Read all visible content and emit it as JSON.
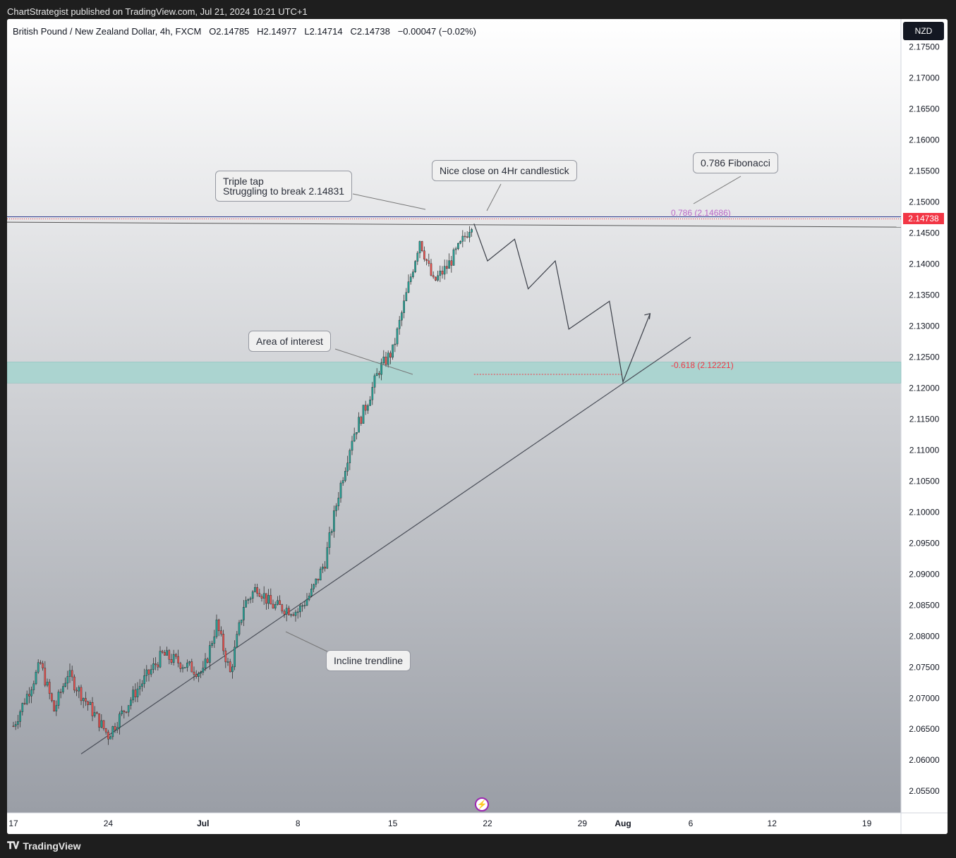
{
  "header": {
    "published": "ChartStrategist published on TradingView.com, Jul 21, 2024 10:21 UTC+1"
  },
  "legend": {
    "symbol": "British Pound / New Zealand Dollar, 4h, FXCM",
    "open": "O2.14785",
    "high": "H2.14977",
    "low": "L2.14714",
    "close": "C2.14738",
    "change": "−0.00047 (−0.02%)"
  },
  "currency_button": "NZD",
  "price_tag": "2.14738",
  "fib_levels": {
    "upper": "0.786 (2.14686)",
    "lower": "-0.618 (2.12221)"
  },
  "callouts": {
    "triple_tap": "Triple tap\nStruggling to break 2.14831",
    "nice_close": "Nice close on 4Hr candlestick",
    "fibonacci": "0.786 Fibonacci",
    "area_of_interest": "Area of interest",
    "incline_trendline": "Incline trendline"
  },
  "footer": {
    "brand": "TradingView",
    "logo_icon": "tradingview-logo-icon"
  },
  "colors": {
    "bull": "#26a69a",
    "bear": "#ef5350",
    "zone": "#a5d3cf",
    "price": "#f23645",
    "fib_upper": "#ba68c8",
    "fib_lower": "#f23645"
  },
  "chart_data": {
    "type": "candlestick",
    "symbol": "GBPNZD",
    "timeframe": "4h",
    "y_range": [
      2.0515,
      2.1795
    ],
    "y_ticks": [
      "2.17500",
      "2.17000",
      "2.16500",
      "2.16000",
      "2.15500",
      "2.15000",
      "2.14500",
      "2.14000",
      "2.13500",
      "2.13000",
      "2.12500",
      "2.12000",
      "2.11500",
      "2.11000",
      "2.10500",
      "2.10000",
      "2.09500",
      "2.09000",
      "2.08500",
      "2.08000",
      "2.07500",
      "2.07000",
      "2.06500",
      "2.06000",
      "2.05500"
    ],
    "x_ticks": [
      {
        "label": "17",
        "date": "2024-06-17"
      },
      {
        "label": "24",
        "date": "2024-06-24"
      },
      {
        "label": "Jul",
        "date": "2024-07-01"
      },
      {
        "label": "8",
        "date": "2024-07-08"
      },
      {
        "label": "15",
        "date": "2024-07-15"
      },
      {
        "label": "22",
        "date": "2024-07-22"
      },
      {
        "label": "29",
        "date": "2024-07-29"
      },
      {
        "label": "Aug",
        "date": "2024-08-01"
      },
      {
        "label": "6",
        "date": "2024-08-06"
      },
      {
        "label": "12",
        "date": "2024-08-12"
      },
      {
        "label": "19",
        "date": "2024-08-19"
      }
    ],
    "last_close": 2.14738,
    "zone": [
      2.1208,
      2.1242
    ],
    "horizontal_line": 2.14738,
    "price_path": [
      [
        "2024-06-17",
        2.0655
      ],
      [
        "2024-06-19",
        2.0755
      ],
      [
        "2024-06-20",
        2.068
      ],
      [
        "2024-06-21",
        2.074
      ],
      [
        "2024-06-24",
        2.064
      ],
      [
        "2024-06-26",
        2.071
      ],
      [
        "2024-06-28",
        2.077
      ],
      [
        "2024-07-01",
        2.074
      ],
      [
        "2024-07-02",
        2.082
      ],
      [
        "2024-07-03",
        2.074
      ],
      [
        "2024-07-04",
        2.085
      ],
      [
        "2024-07-05",
        2.088
      ],
      [
        "2024-07-06",
        2.085
      ],
      [
        "2024-07-08",
        2.084
      ],
      [
        "2024-07-09",
        2.087
      ],
      [
        "2024-07-10",
        2.092
      ],
      [
        "2024-07-11",
        2.103
      ],
      [
        "2024-07-12",
        2.112
      ],
      [
        "2024-07-13",
        2.117
      ],
      [
        "2024-07-14",
        2.123
      ],
      [
        "2024-07-15",
        2.126
      ],
      [
        "2024-07-16",
        2.135
      ],
      [
        "2024-07-17",
        2.144
      ],
      [
        "2024-07-18",
        2.137
      ],
      [
        "2024-07-19",
        2.1395
      ],
      [
        "2024-07-20",
        2.143
      ],
      [
        "2024-07-21",
        2.1474
      ]
    ],
    "projection_path": [
      [
        "2024-07-21",
        2.1465
      ],
      [
        "2024-07-22",
        2.1405
      ],
      [
        "2024-07-24",
        2.144
      ],
      [
        "2024-07-25",
        2.136
      ],
      [
        "2024-07-27",
        2.1405
      ],
      [
        "2024-07-28",
        2.1295
      ],
      [
        "2024-07-31",
        2.134
      ],
      [
        "2024-08-01",
        2.121
      ],
      [
        "2024-08-03",
        2.132
      ]
    ],
    "trendline": [
      [
        "2024-06-22",
        2.061
      ],
      [
        "2024-08-06",
        2.1282
      ]
    ],
    "fib_0786": 2.14686,
    "fib_n0618": 2.12221
  }
}
